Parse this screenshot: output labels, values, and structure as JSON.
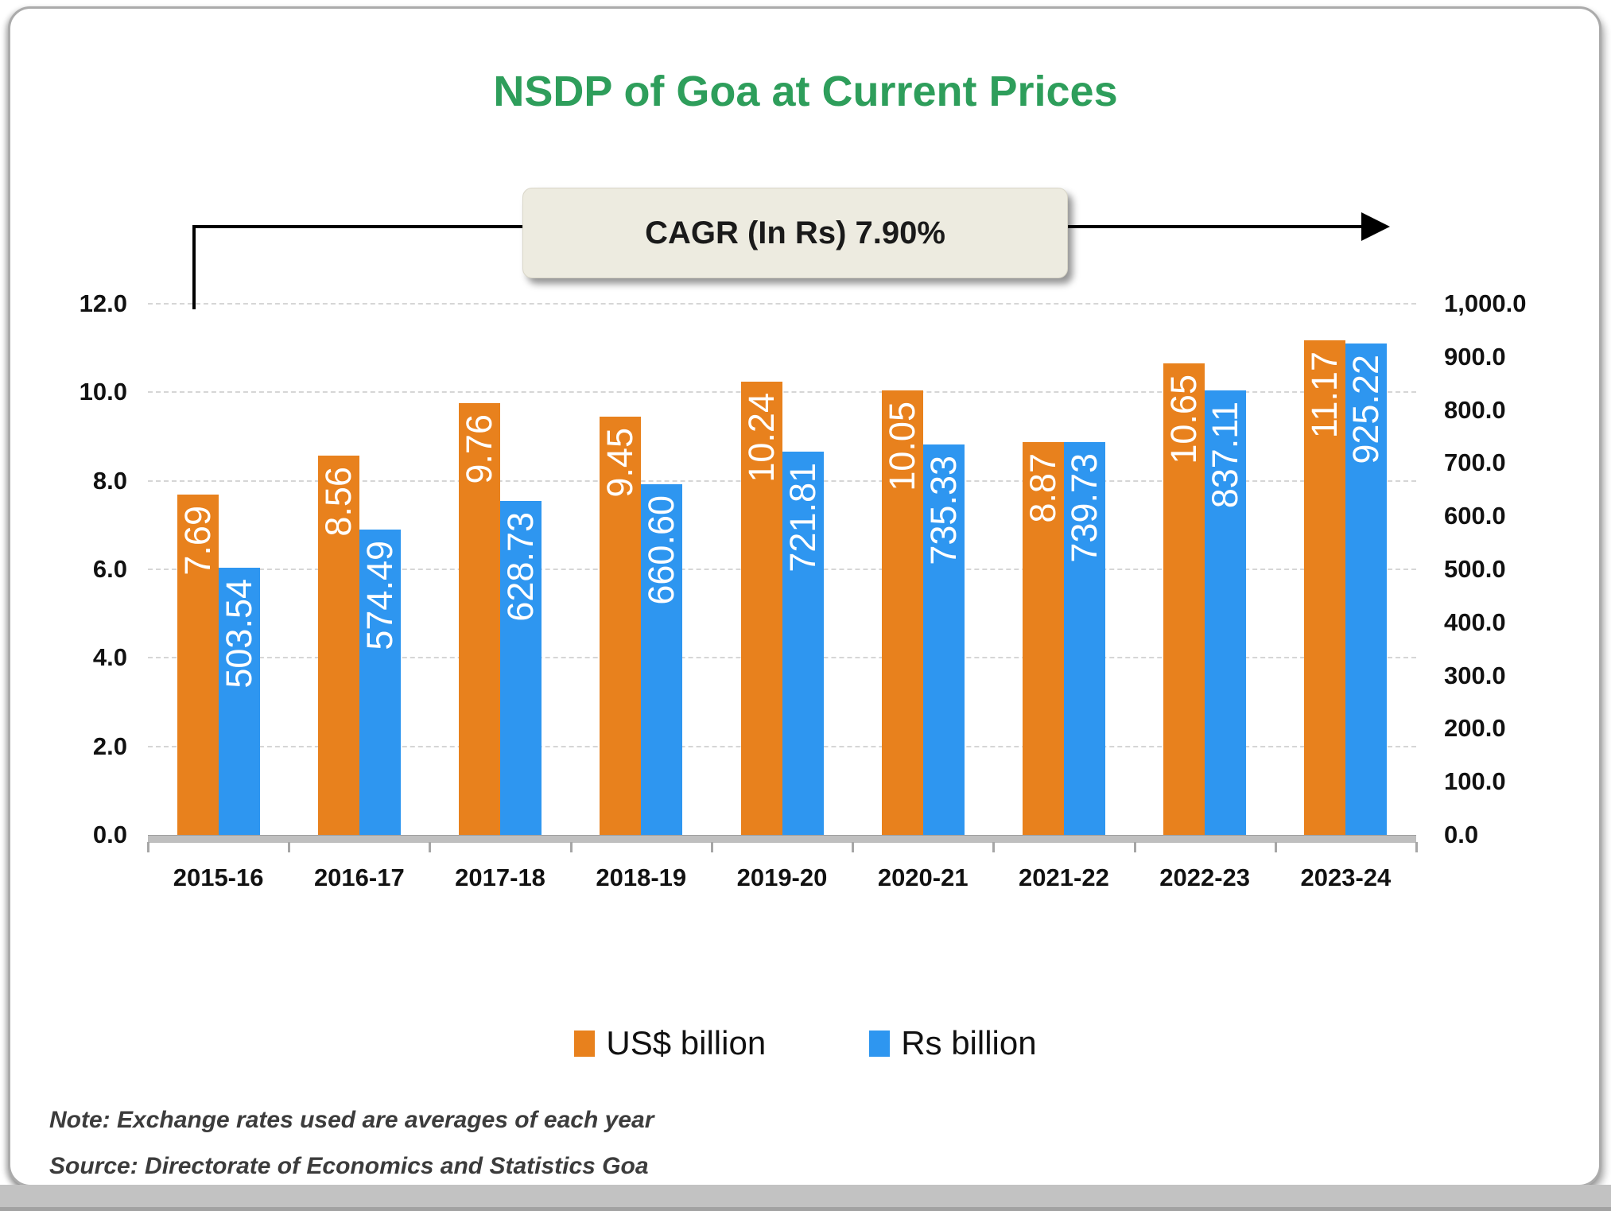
{
  "title": "NSDP of Goa at Current Prices",
  "callout": {
    "label": "CAGR (In Rs) 7.90%"
  },
  "chart_data": {
    "type": "bar",
    "title": "NSDP of Goa at Current Prices",
    "categories": [
      "2015-16",
      "2016-17",
      "2017-18",
      "2018-19",
      "2019-20",
      "2020-21",
      "2021-22",
      "2022-23",
      "2023-24"
    ],
    "series": [
      {
        "name": "US$ billion",
        "axis": "left",
        "color": "#e8811d",
        "values": [
          7.69,
          8.56,
          9.76,
          9.45,
          10.24,
          10.05,
          8.87,
          10.65,
          11.17
        ],
        "labels": [
          "7.69",
          "8.56",
          "9.76",
          "9.45",
          "10.24",
          "10.05",
          "8.87",
          "10.65",
          "11.17"
        ]
      },
      {
        "name": "Rs billion",
        "axis": "right",
        "color": "#2e96f0",
        "values": [
          503.54,
          574.49,
          628.73,
          660.6,
          721.81,
          735.33,
          739.73,
          837.11,
          925.22
        ],
        "labels": [
          "503.54",
          "574.49",
          "628.73",
          "660.60",
          "721.81",
          "735.33",
          "739.73",
          "837.11",
          "925.22"
        ]
      }
    ],
    "left_axis": {
      "min": 0,
      "max": 12,
      "tick_step": 2,
      "tick_labels": [
        "12.0",
        "10.0",
        "8.0",
        "6.0",
        "4.0",
        "2.0",
        "0.0"
      ]
    },
    "right_axis": {
      "min": 0,
      "max": 1000,
      "tick_step": 100,
      "tick_labels": [
        "1,000.0",
        "900.0",
        "800.0",
        "700.0",
        "600.0",
        "500.0",
        "400.0",
        "300.0",
        "200.0",
        "100.0",
        "0.0"
      ]
    },
    "grid": "horizontal-dashed",
    "legend_position": "bottom",
    "annotation": "CAGR (In Rs) 7.90%"
  },
  "notes": {
    "note": "Note: Exchange rates used are averages of each year",
    "source": "Source: Directorate of Economics and Statistics Goa"
  },
  "colors": {
    "title_green": "#2e9e5b",
    "us_orange": "#e8811d",
    "rs_blue": "#2e96f0",
    "cagr_box_bg": "#edebe0"
  }
}
